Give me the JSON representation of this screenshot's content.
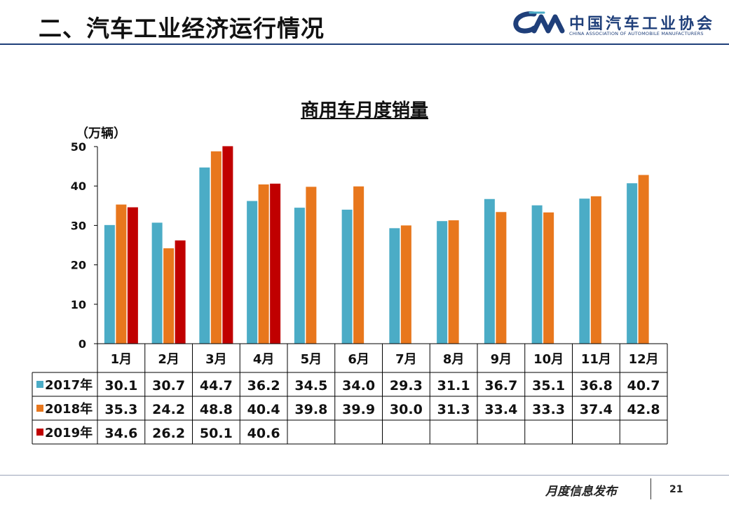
{
  "header": {
    "title": "二、汽车工业经济运行情况",
    "logo_cn": "中国汽车工业协会",
    "logo_en": "CHINA ASSOCIATION OF AUTOMOBILE MANUFACTURERS"
  },
  "footer": {
    "text": "月度信息发布",
    "page": "21"
  },
  "colors": {
    "2017": "#4bacc6",
    "2018": "#e8771d",
    "2019": "#c00000",
    "header_line": "#1f3f7a"
  },
  "chart_data": {
    "type": "bar",
    "title": "商用车月度销量",
    "ylabel": "（万辆）",
    "ylim": [
      0,
      50
    ],
    "yticks": [
      "0",
      "10",
      "20",
      "30",
      "40",
      "50"
    ],
    "categories": [
      "1月",
      "2月",
      "3月",
      "4月",
      "5月",
      "6月",
      "7月",
      "8月",
      "9月",
      "10月",
      "11月",
      "12月"
    ],
    "series": [
      {
        "name": "2017年",
        "values": [
          30.1,
          30.7,
          44.7,
          36.2,
          34.5,
          34.0,
          29.3,
          31.1,
          36.7,
          35.1,
          36.8,
          40.7
        ]
      },
      {
        "name": "2018年",
        "values": [
          35.3,
          24.2,
          48.8,
          40.4,
          39.8,
          39.9,
          30.0,
          31.3,
          33.4,
          33.3,
          37.4,
          42.8
        ]
      },
      {
        "name": "2019年",
        "values": [
          34.6,
          26.2,
          50.1,
          40.6,
          null,
          null,
          null,
          null,
          null,
          null,
          null,
          null
        ]
      }
    ],
    "table_values": [
      [
        "30.1",
        "30.7",
        "44.7",
        "36.2",
        "34.5",
        "34.0",
        "29.3",
        "31.1",
        "36.7",
        "35.1",
        "36.8",
        "40.7"
      ],
      [
        "35.3",
        "24.2",
        "48.8",
        "40.4",
        "39.8",
        "39.9",
        "30.0",
        "31.3",
        "33.4",
        "33.3",
        "37.4",
        "42.8"
      ],
      [
        "34.6",
        "26.2",
        "50.1",
        "40.6",
        "",
        "",
        "",
        "",
        "",
        "",
        "",
        ""
      ]
    ],
    "legend": "bottom-table",
    "grid": false
  }
}
